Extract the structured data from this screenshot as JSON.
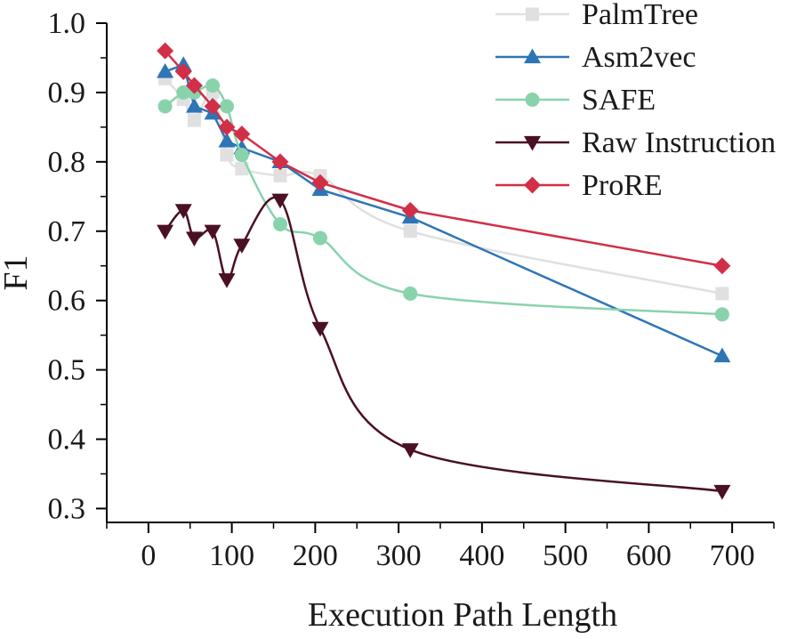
{
  "chart_data": {
    "type": "line",
    "title": "",
    "xlabel": "Execution Path Length",
    "ylabel": "F1",
    "xlim": [
      -50,
      750
    ],
    "ylim": [
      0.28,
      1.0
    ],
    "xticks": [
      0,
      100,
      200,
      300,
      400,
      500,
      600,
      700
    ],
    "xtick_labels": [
      "0",
      "100",
      "200",
      "300",
      "400",
      "500",
      "600",
      "700"
    ],
    "yticks": [
      0.3,
      0.4,
      0.5,
      0.6,
      0.7,
      0.8,
      0.9,
      1.0
    ],
    "ytick_labels": [
      "0.3",
      "0.4",
      "0.5",
      "0.6",
      "0.7",
      "0.8",
      "0.9",
      "1.0"
    ],
    "legend_position": "top-right",
    "grid": false,
    "series": [
      {
        "name": "PalmTree",
        "color": "#e0e0e0",
        "marker": "square",
        "smooth": true,
        "x": [
          20,
          42,
          55,
          77,
          94,
          112,
          158,
          206,
          314,
          688
        ],
        "y": [
          0.92,
          0.89,
          0.86,
          0.9,
          0.81,
          0.79,
          0.78,
          0.78,
          0.7,
          0.61
        ]
      },
      {
        "name": "Asm2vec",
        "color": "#2e75b6",
        "marker": "triangle-up",
        "smooth": false,
        "x": [
          20,
          42,
          55,
          77,
          94,
          112,
          158,
          206,
          314,
          688
        ],
        "y": [
          0.93,
          0.94,
          0.88,
          0.87,
          0.83,
          0.82,
          0.8,
          0.76,
          0.72,
          0.52
        ]
      },
      {
        "name": "SAFE",
        "color": "#88d3ac",
        "marker": "circle",
        "smooth": true,
        "x": [
          20,
          42,
          55,
          77,
          94,
          112,
          158,
          206,
          314,
          688
        ],
        "y": [
          0.88,
          0.9,
          0.9,
          0.91,
          0.88,
          0.81,
          0.71,
          0.69,
          0.61,
          0.58
        ]
      },
      {
        "name": "Raw Instruction",
        "color": "#4a1024",
        "marker": "triangle-down",
        "smooth": true,
        "x": [
          20,
          42,
          55,
          77,
          94,
          112,
          158,
          206,
          314,
          688
        ],
        "y": [
          0.7,
          0.73,
          0.69,
          0.7,
          0.63,
          0.68,
          0.745,
          0.56,
          0.385,
          0.325
        ]
      },
      {
        "name": "ProRE",
        "color": "#d12f48",
        "marker": "diamond",
        "smooth": false,
        "x": [
          20,
          42,
          55,
          77,
          94,
          112,
          158,
          206,
          314,
          688
        ],
        "y": [
          0.96,
          0.93,
          0.91,
          0.88,
          0.85,
          0.84,
          0.8,
          0.77,
          0.73,
          0.65
        ]
      }
    ]
  }
}
